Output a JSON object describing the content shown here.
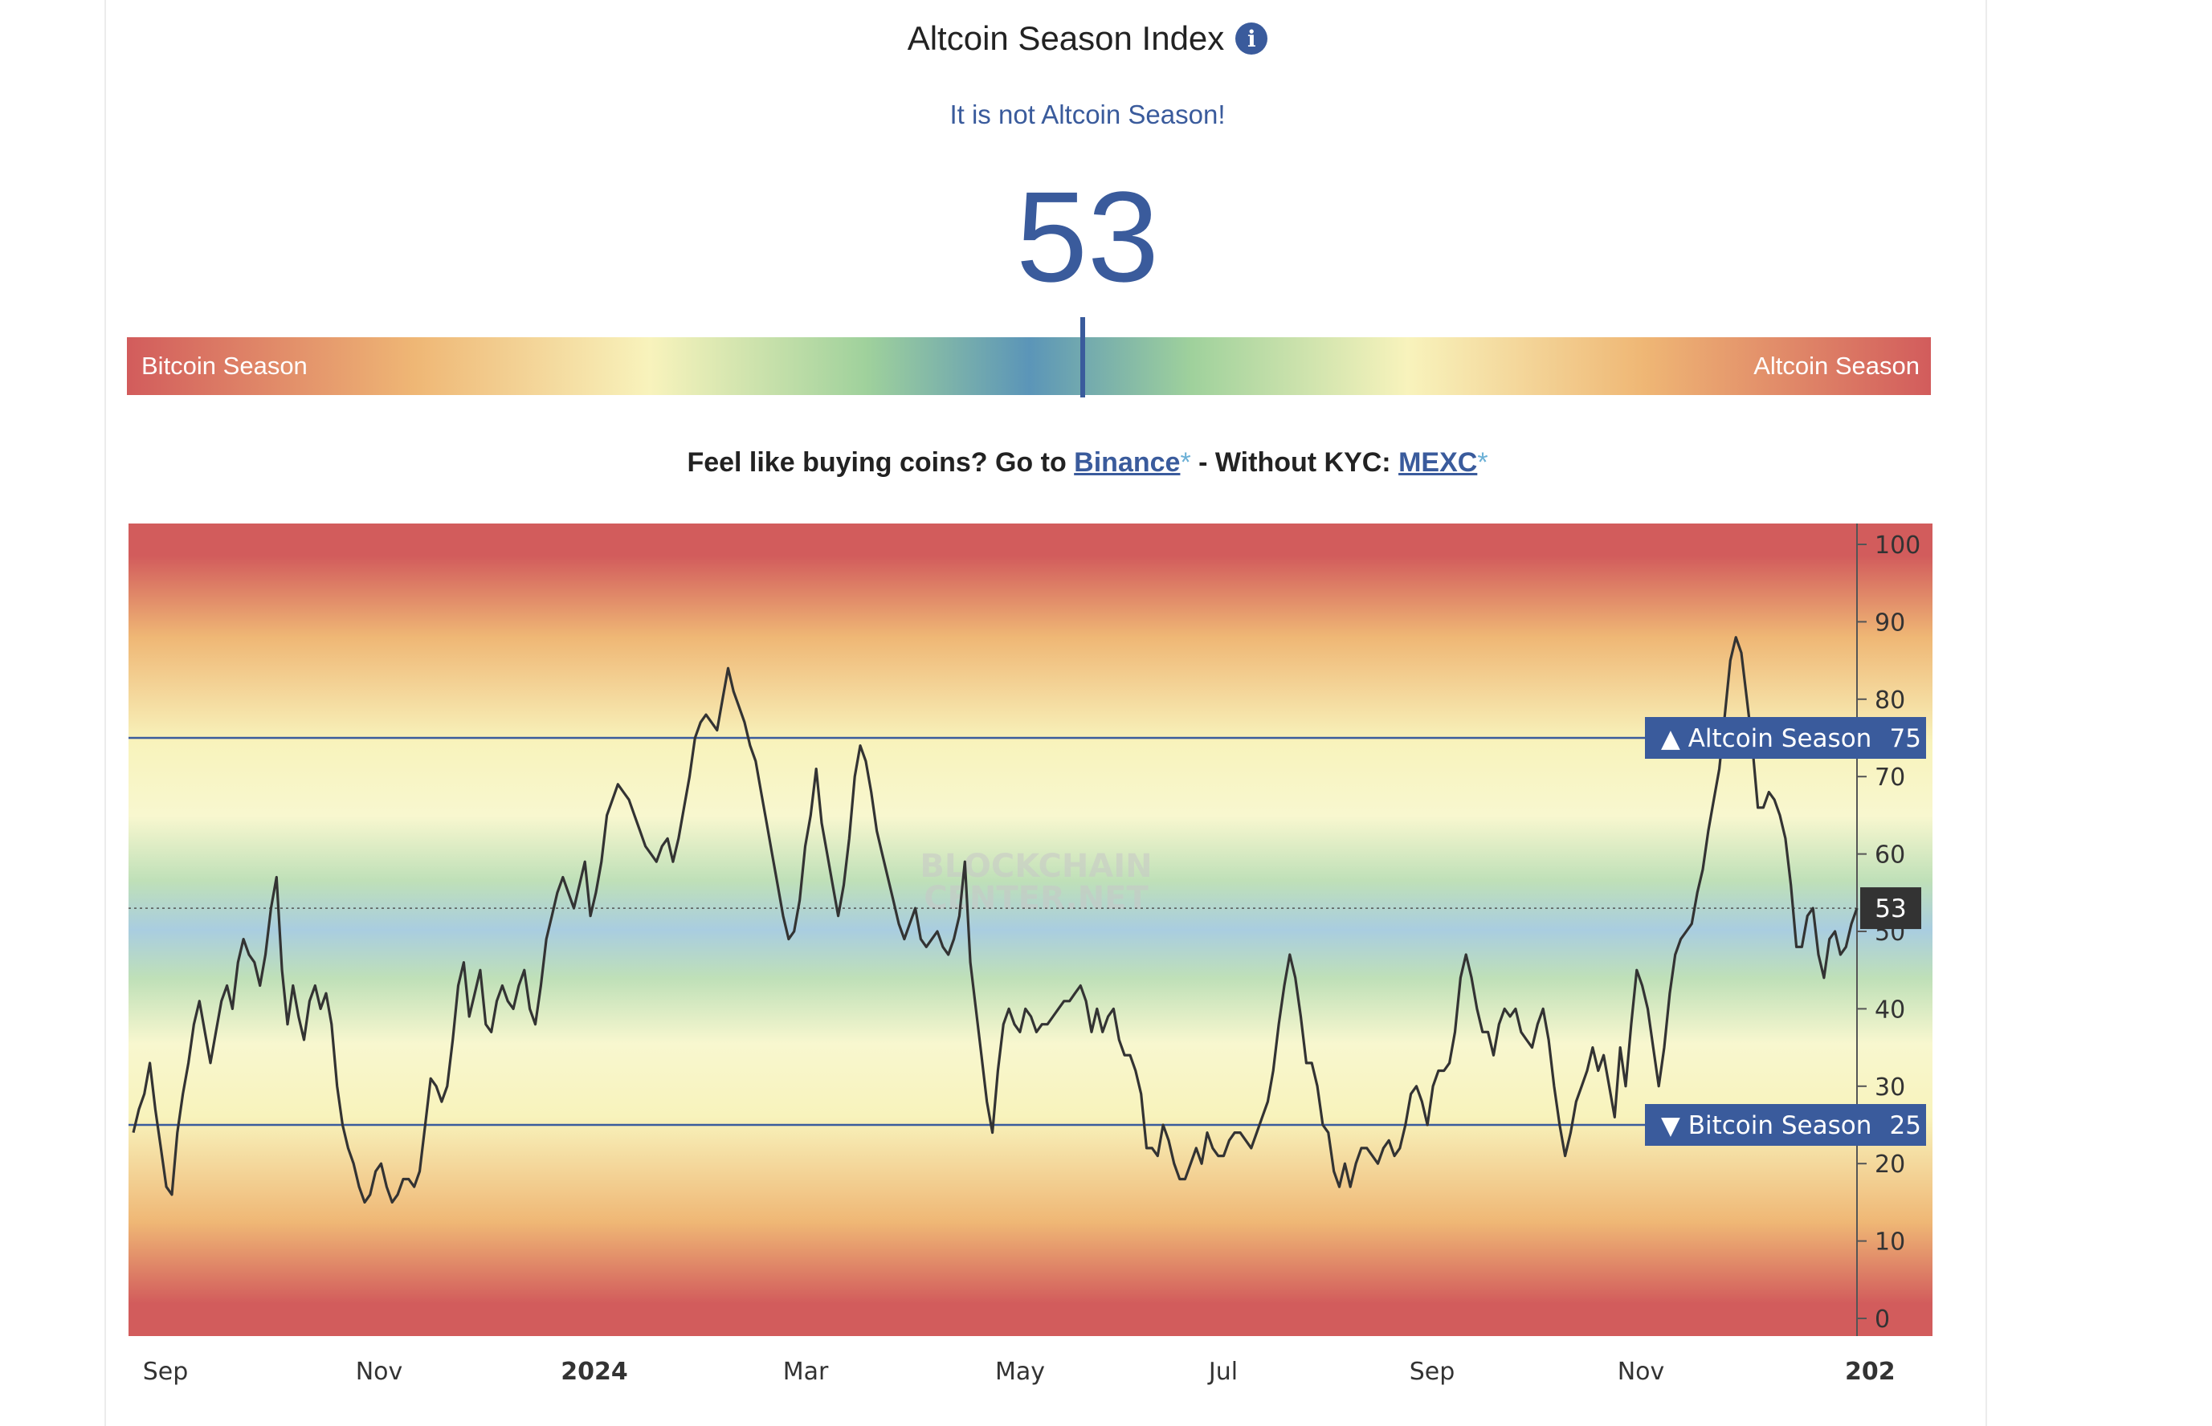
{
  "header": {
    "title": "Altcoin Season Index",
    "info_icon": "info-icon",
    "status": "It is not Altcoin Season!",
    "value": "53"
  },
  "gauge": {
    "left_label": "Bitcoin Season",
    "right_label": "Altcoin Season",
    "value": 53
  },
  "buy": {
    "prefix": "Feel like buying coins? Go to ",
    "binance": "Binance",
    "asterisk": "*",
    "middle": " - Without KYC: ",
    "mexc": "MEXC"
  },
  "colors": {
    "accent": "#3a5b9c",
    "line": "#333333",
    "red": "#d25c5c",
    "orange": "#efb775",
    "yellow": "#f8f3bc",
    "green": "#9fd19c",
    "blue": "#a9cde0",
    "current_badge": "#333333"
  },
  "chart_data": {
    "type": "line",
    "ylim": [
      0,
      100
    ],
    "y_ticks": [
      0,
      10,
      20,
      30,
      40,
      50,
      60,
      70,
      80,
      90,
      100
    ],
    "x_ticks": [
      "Sep",
      "Nov",
      "2024",
      "Mar",
      "May",
      "Jul",
      "Sep",
      "Nov",
      "202"
    ],
    "watermark": [
      "BLOCKCHAIN",
      "CENTER.NET"
    ],
    "reference_lines": [
      {
        "label": "▲ Altcoin Season",
        "value": 75
      },
      {
        "label": "▼ Bitcoin Season",
        "value": 25
      }
    ],
    "current": {
      "label": "53",
      "value": 53
    },
    "series": [
      {
        "values": [
          24,
          27,
          29,
          33,
          27,
          22,
          17,
          16,
          24,
          29,
          33,
          38,
          41,
          37,
          33,
          37,
          41,
          43,
          40,
          46,
          49,
          47,
          46,
          43,
          47,
          53,
          57,
          45,
          38,
          43,
          39,
          36,
          41,
          43,
          40,
          42,
          38,
          30,
          25,
          22,
          20,
          17,
          15,
          16,
          19,
          20,
          17,
          15,
          16,
          18,
          18,
          17,
          19,
          25,
          31,
          30,
          28,
          30,
          36,
          43,
          46,
          39,
          42,
          45,
          38,
          37,
          41,
          43,
          41,
          40,
          43,
          45,
          40,
          38,
          43,
          49,
          52,
          55,
          57,
          55,
          53,
          56,
          59,
          52,
          55,
          59,
          65,
          67,
          69,
          68,
          67,
          65,
          63,
          61,
          60,
          59,
          61,
          62,
          59,
          62,
          66,
          70,
          75,
          77,
          78,
          77,
          76,
          80,
          84,
          81,
          79,
          77,
          74,
          72,
          68,
          64,
          60,
          56,
          52,
          49,
          50,
          54,
          61,
          65,
          71,
          64,
          60,
          56,
          52,
          56,
          62,
          70,
          74,
          72,
          68,
          63,
          60,
          57,
          54,
          51,
          49,
          51,
          53,
          49,
          48,
          49,
          50,
          48,
          47,
          49,
          52,
          59,
          46,
          40,
          34,
          28,
          24,
          32,
          38,
          40,
          38,
          37,
          40,
          39,
          37,
          38,
          38,
          39,
          40,
          41,
          41,
          42,
          43,
          41,
          37,
          40,
          37,
          39,
          40,
          36,
          34,
          34,
          32,
          29,
          22,
          22,
          21,
          25,
          23,
          20,
          18,
          18,
          20,
          22,
          20,
          24,
          22,
          21,
          21,
          23,
          24,
          24,
          23,
          22,
          24,
          26,
          28,
          32,
          38,
          43,
          47,
          44,
          39,
          33,
          33,
          30,
          25,
          24,
          19,
          17,
          20,
          17,
          20,
          22,
          22,
          21,
          20,
          22,
          23,
          21,
          22,
          25,
          29,
          30,
          28,
          25,
          30,
          32,
          32,
          33,
          37,
          44,
          47,
          44,
          40,
          37,
          37,
          34,
          38,
          40,
          39,
          40,
          37,
          36,
          35,
          38,
          40,
          36,
          30,
          25,
          21,
          24,
          28,
          30,
          32,
          35,
          32,
          34,
          30,
          26,
          35,
          30,
          38,
          45,
          43,
          40,
          35,
          30,
          35,
          42,
          47,
          49,
          50,
          51,
          55,
          58,
          63,
          67,
          71,
          78,
          85,
          88,
          86,
          80,
          74,
          66,
          66,
          68,
          67,
          65,
          62,
          56,
          48,
          48,
          52,
          53,
          47,
          44,
          49,
          50,
          47,
          48,
          51,
          53
        ]
      }
    ]
  }
}
